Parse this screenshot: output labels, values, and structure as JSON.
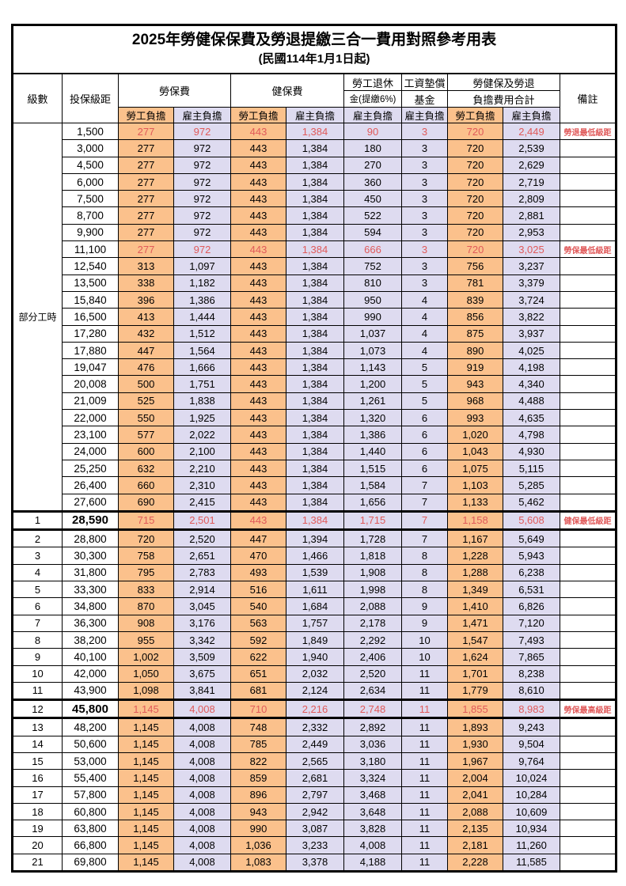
{
  "title": {
    "main": "2025年勞健保保費及勞退提繳三合一費用對照參考用表",
    "sub": "(民國114年1月1日起)"
  },
  "header": {
    "level": "級數",
    "bracket": "投保級距",
    "labor_ins": "勞保費",
    "health_ins": "健保費",
    "pension_line1": "勞工退休",
    "pension_line2": "金(提繳6%)",
    "wage_fund_line1": "工資墊償",
    "wage_fund_line2": "基金",
    "total_line1": "勞健保及勞退",
    "total_line2": "負擔費用合計",
    "remark": "備註",
    "employee_share": "勞工負擔",
    "employer_share": "雇主負擔"
  },
  "part_time": {
    "label": "部分工時",
    "row_span": 23
  },
  "column_kinds": [
    "employee",
    "employer",
    "employee",
    "employer",
    "employer",
    "employer",
    "employee",
    "employer"
  ],
  "colors": {
    "employee_bg": "#FBC18C",
    "employer_bg": "#DEDBF0",
    "highlight_red": "#E05A5A",
    "border": "#000000"
  },
  "rows": [
    {
      "level": "",
      "bracket": "1,500",
      "values": [
        "277",
        "972",
        "443",
        "1,384",
        "90",
        "3",
        "720",
        "2,449"
      ],
      "remark": "勞退最低級距",
      "red": true,
      "thick": false,
      "bold": false
    },
    {
      "level": "",
      "bracket": "3,000",
      "values": [
        "277",
        "972",
        "443",
        "1,384",
        "180",
        "3",
        "720",
        "2,539"
      ],
      "remark": "",
      "red": false,
      "thick": false,
      "bold": false
    },
    {
      "level": "",
      "bracket": "4,500",
      "values": [
        "277",
        "972",
        "443",
        "1,384",
        "270",
        "3",
        "720",
        "2,629"
      ],
      "remark": "",
      "red": false,
      "thick": false,
      "bold": false
    },
    {
      "level": "",
      "bracket": "6,000",
      "values": [
        "277",
        "972",
        "443",
        "1,384",
        "360",
        "3",
        "720",
        "2,719"
      ],
      "remark": "",
      "red": false,
      "thick": false,
      "bold": false
    },
    {
      "level": "",
      "bracket": "7,500",
      "values": [
        "277",
        "972",
        "443",
        "1,384",
        "450",
        "3",
        "720",
        "2,809"
      ],
      "remark": "",
      "red": false,
      "thick": false,
      "bold": false
    },
    {
      "level": "",
      "bracket": "8,700",
      "values": [
        "277",
        "972",
        "443",
        "1,384",
        "522",
        "3",
        "720",
        "2,881"
      ],
      "remark": "",
      "red": false,
      "thick": false,
      "bold": false
    },
    {
      "level": "",
      "bracket": "9,900",
      "values": [
        "277",
        "972",
        "443",
        "1,384",
        "594",
        "3",
        "720",
        "2,953"
      ],
      "remark": "",
      "red": false,
      "thick": false,
      "bold": false
    },
    {
      "level": "",
      "bracket": "11,100",
      "values": [
        "277",
        "972",
        "443",
        "1,384",
        "666",
        "3",
        "720",
        "3,025"
      ],
      "remark": "勞保最低級距",
      "red": true,
      "thick": false,
      "bold": false
    },
    {
      "level": "",
      "bracket": "12,540",
      "values": [
        "313",
        "1,097",
        "443",
        "1,384",
        "752",
        "3",
        "756",
        "3,237"
      ],
      "remark": "",
      "red": false,
      "thick": false,
      "bold": false
    },
    {
      "level": "",
      "bracket": "13,500",
      "values": [
        "338",
        "1,182",
        "443",
        "1,384",
        "810",
        "3",
        "781",
        "3,379"
      ],
      "remark": "",
      "red": false,
      "thick": false,
      "bold": false
    },
    {
      "level": "",
      "bracket": "15,840",
      "values": [
        "396",
        "1,386",
        "443",
        "1,384",
        "950",
        "4",
        "839",
        "3,724"
      ],
      "remark": "",
      "red": false,
      "thick": false,
      "bold": false
    },
    {
      "level": "",
      "bracket": "16,500",
      "values": [
        "413",
        "1,444",
        "443",
        "1,384",
        "990",
        "4",
        "856",
        "3,822"
      ],
      "remark": "",
      "red": false,
      "thick": false,
      "bold": false
    },
    {
      "level": "",
      "bracket": "17,280",
      "values": [
        "432",
        "1,512",
        "443",
        "1,384",
        "1,037",
        "4",
        "875",
        "3,937"
      ],
      "remark": "",
      "red": false,
      "thick": false,
      "bold": false
    },
    {
      "level": "",
      "bracket": "17,880",
      "values": [
        "447",
        "1,564",
        "443",
        "1,384",
        "1,073",
        "4",
        "890",
        "4,025"
      ],
      "remark": "",
      "red": false,
      "thick": false,
      "bold": false
    },
    {
      "level": "",
      "bracket": "19,047",
      "values": [
        "476",
        "1,666",
        "443",
        "1,384",
        "1,143",
        "5",
        "919",
        "4,198"
      ],
      "remark": "",
      "red": false,
      "thick": false,
      "bold": false
    },
    {
      "level": "",
      "bracket": "20,008",
      "values": [
        "500",
        "1,751",
        "443",
        "1,384",
        "1,200",
        "5",
        "943",
        "4,340"
      ],
      "remark": "",
      "red": false,
      "thick": false,
      "bold": false
    },
    {
      "level": "",
      "bracket": "21,009",
      "values": [
        "525",
        "1,838",
        "443",
        "1,384",
        "1,261",
        "5",
        "968",
        "4,488"
      ],
      "remark": "",
      "red": false,
      "thick": false,
      "bold": false
    },
    {
      "level": "",
      "bracket": "22,000",
      "values": [
        "550",
        "1,925",
        "443",
        "1,384",
        "1,320",
        "6",
        "993",
        "4,635"
      ],
      "remark": "",
      "red": false,
      "thick": false,
      "bold": false
    },
    {
      "level": "",
      "bracket": "23,100",
      "values": [
        "577",
        "2,022",
        "443",
        "1,384",
        "1,386",
        "6",
        "1,020",
        "4,798"
      ],
      "remark": "",
      "red": false,
      "thick": false,
      "bold": false
    },
    {
      "level": "",
      "bracket": "24,000",
      "values": [
        "600",
        "2,100",
        "443",
        "1,384",
        "1,440",
        "6",
        "1,043",
        "4,930"
      ],
      "remark": "",
      "red": false,
      "thick": false,
      "bold": false
    },
    {
      "level": "",
      "bracket": "25,250",
      "values": [
        "632",
        "2,210",
        "443",
        "1,384",
        "1,515",
        "6",
        "1,075",
        "5,115"
      ],
      "remark": "",
      "red": false,
      "thick": false,
      "bold": false
    },
    {
      "level": "",
      "bracket": "26,400",
      "values": [
        "660",
        "2,310",
        "443",
        "1,384",
        "1,584",
        "7",
        "1,103",
        "5,285"
      ],
      "remark": "",
      "red": false,
      "thick": false,
      "bold": false
    },
    {
      "level": "",
      "bracket": "27,600",
      "values": [
        "690",
        "2,415",
        "443",
        "1,384",
        "1,656",
        "7",
        "1,133",
        "5,462"
      ],
      "remark": "",
      "red": false,
      "thick": false,
      "bold": false
    },
    {
      "level": "1",
      "bracket": "28,590",
      "values": [
        "715",
        "2,501",
        "443",
        "1,384",
        "1,715",
        "7",
        "1,158",
        "5,608"
      ],
      "remark": "健保最低級距",
      "red": true,
      "thick": true,
      "bold": true
    },
    {
      "level": "2",
      "bracket": "28,800",
      "values": [
        "720",
        "2,520",
        "447",
        "1,394",
        "1,728",
        "7",
        "1,167",
        "5,649"
      ],
      "remark": "",
      "red": false,
      "thick": false,
      "bold": false
    },
    {
      "level": "3",
      "bracket": "30,300",
      "values": [
        "758",
        "2,651",
        "470",
        "1,466",
        "1,818",
        "8",
        "1,228",
        "5,943"
      ],
      "remark": "",
      "red": false,
      "thick": false,
      "bold": false
    },
    {
      "level": "4",
      "bracket": "31,800",
      "values": [
        "795",
        "2,783",
        "493",
        "1,539",
        "1,908",
        "8",
        "1,288",
        "6,238"
      ],
      "remark": "",
      "red": false,
      "thick": false,
      "bold": false
    },
    {
      "level": "5",
      "bracket": "33,300",
      "values": [
        "833",
        "2,914",
        "516",
        "1,611",
        "1,998",
        "8",
        "1,349",
        "6,531"
      ],
      "remark": "",
      "red": false,
      "thick": false,
      "bold": false
    },
    {
      "level": "6",
      "bracket": "34,800",
      "values": [
        "870",
        "3,045",
        "540",
        "1,684",
        "2,088",
        "9",
        "1,410",
        "6,826"
      ],
      "remark": "",
      "red": false,
      "thick": false,
      "bold": false
    },
    {
      "level": "7",
      "bracket": "36,300",
      "values": [
        "908",
        "3,176",
        "563",
        "1,757",
        "2,178",
        "9",
        "1,471",
        "7,120"
      ],
      "remark": "",
      "red": false,
      "thick": false,
      "bold": false
    },
    {
      "level": "8",
      "bracket": "38,200",
      "values": [
        "955",
        "3,342",
        "592",
        "1,849",
        "2,292",
        "10",
        "1,547",
        "7,493"
      ],
      "remark": "",
      "red": false,
      "thick": false,
      "bold": false
    },
    {
      "level": "9",
      "bracket": "40,100",
      "values": [
        "1,002",
        "3,509",
        "622",
        "1,940",
        "2,406",
        "10",
        "1,624",
        "7,865"
      ],
      "remark": "",
      "red": false,
      "thick": false,
      "bold": false
    },
    {
      "level": "10",
      "bracket": "42,000",
      "values": [
        "1,050",
        "3,675",
        "651",
        "2,032",
        "2,520",
        "11",
        "1,701",
        "8,238"
      ],
      "remark": "",
      "red": false,
      "thick": false,
      "bold": false
    },
    {
      "level": "11",
      "bracket": "43,900",
      "values": [
        "1,098",
        "3,841",
        "681",
        "2,124",
        "2,634",
        "11",
        "1,779",
        "8,610"
      ],
      "remark": "",
      "red": false,
      "thick": false,
      "bold": false
    },
    {
      "level": "12",
      "bracket": "45,800",
      "values": [
        "1,145",
        "4,008",
        "710",
        "2,216",
        "2,748",
        "11",
        "1,855",
        "8,983"
      ],
      "remark": "勞保最高級距",
      "red": true,
      "thick": true,
      "bold": true
    },
    {
      "level": "13",
      "bracket": "48,200",
      "values": [
        "1,145",
        "4,008",
        "748",
        "2,332",
        "2,892",
        "11",
        "1,893",
        "9,243"
      ],
      "remark": "",
      "red": false,
      "thick": false,
      "bold": false
    },
    {
      "level": "14",
      "bracket": "50,600",
      "values": [
        "1,145",
        "4,008",
        "785",
        "2,449",
        "3,036",
        "11",
        "1,930",
        "9,504"
      ],
      "remark": "",
      "red": false,
      "thick": false,
      "bold": false
    },
    {
      "level": "15",
      "bracket": "53,000",
      "values": [
        "1,145",
        "4,008",
        "822",
        "2,565",
        "3,180",
        "11",
        "1,967",
        "9,764"
      ],
      "remark": "",
      "red": false,
      "thick": false,
      "bold": false
    },
    {
      "level": "16",
      "bracket": "55,400",
      "values": [
        "1,145",
        "4,008",
        "859",
        "2,681",
        "3,324",
        "11",
        "2,004",
        "10,024"
      ],
      "remark": "",
      "red": false,
      "thick": false,
      "bold": false
    },
    {
      "level": "17",
      "bracket": "57,800",
      "values": [
        "1,145",
        "4,008",
        "896",
        "2,797",
        "3,468",
        "11",
        "2,041",
        "10,284"
      ],
      "remark": "",
      "red": false,
      "thick": false,
      "bold": false
    },
    {
      "level": "18",
      "bracket": "60,800",
      "values": [
        "1,145",
        "4,008",
        "943",
        "2,942",
        "3,648",
        "11",
        "2,088",
        "10,609"
      ],
      "remark": "",
      "red": false,
      "thick": false,
      "bold": false
    },
    {
      "level": "19",
      "bracket": "63,800",
      "values": [
        "1,145",
        "4,008",
        "990",
        "3,087",
        "3,828",
        "11",
        "2,135",
        "10,934"
      ],
      "remark": "",
      "red": false,
      "thick": false,
      "bold": false
    },
    {
      "level": "20",
      "bracket": "66,800",
      "values": [
        "1,145",
        "4,008",
        "1,036",
        "3,233",
        "4,008",
        "11",
        "2,181",
        "11,260"
      ],
      "remark": "",
      "red": false,
      "thick": false,
      "bold": false
    },
    {
      "level": "21",
      "bracket": "69,800",
      "values": [
        "1,145",
        "4,008",
        "1,083",
        "3,378",
        "4,188",
        "11",
        "2,228",
        "11,585"
      ],
      "remark": "",
      "red": false,
      "thick": false,
      "bold": false
    }
  ]
}
